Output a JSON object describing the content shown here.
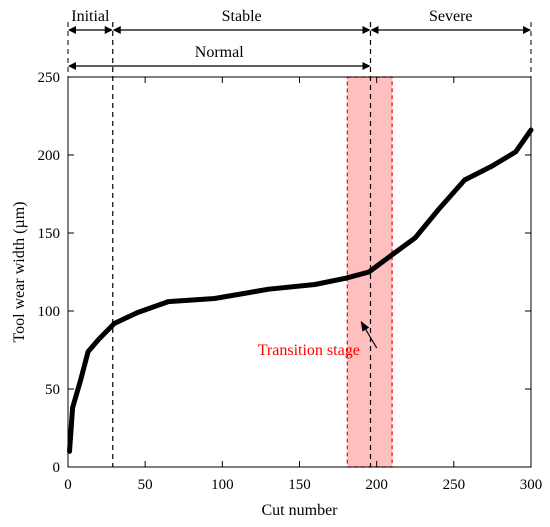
{
  "chart_data": {
    "type": "line",
    "xlabel": "Cut number",
    "ylabel": "Tool wear width (µm)",
    "xlim": [
      0,
      300
    ],
    "ylim": [
      0,
      250
    ],
    "xticks": [
      0,
      50,
      100,
      150,
      200,
      250,
      300
    ],
    "yticks": [
      0,
      50,
      100,
      150,
      200,
      250
    ],
    "grid": false,
    "series": [
      {
        "color": "#000000",
        "x": [
          1,
          3,
          8,
          13,
          20,
          30,
          45,
          65,
          95,
          130,
          160,
          180,
          195,
          210,
          225,
          240,
          257,
          275,
          290,
          300
        ],
        "y": [
          10,
          38,
          55,
          74,
          82,
          92,
          99,
          106,
          108,
          114,
          117,
          121,
          125,
          136,
          147,
          165,
          184,
          193,
          202,
          216
        ]
      }
    ],
    "stage_boundaries": [
      29,
      196
    ],
    "stages": [
      {
        "label": "Initial",
        "from": 0,
        "to": 29,
        "row": "top"
      },
      {
        "label": "Stable",
        "from": 29,
        "to": 196,
        "row": "top"
      },
      {
        "label": "Severe",
        "from": 196,
        "to": 300,
        "row": "top"
      },
      {
        "label": "Normal",
        "from": 0,
        "to": 196,
        "row": "bottom"
      }
    ],
    "transition_band": {
      "from": 181,
      "to": 210,
      "color": "#ff0000"
    },
    "annotation": {
      "text": "Transition stage",
      "color": "#ff0000",
      "text_at": [
        156,
        75
      ],
      "arrow_to": [
        190,
        93
      ]
    }
  }
}
